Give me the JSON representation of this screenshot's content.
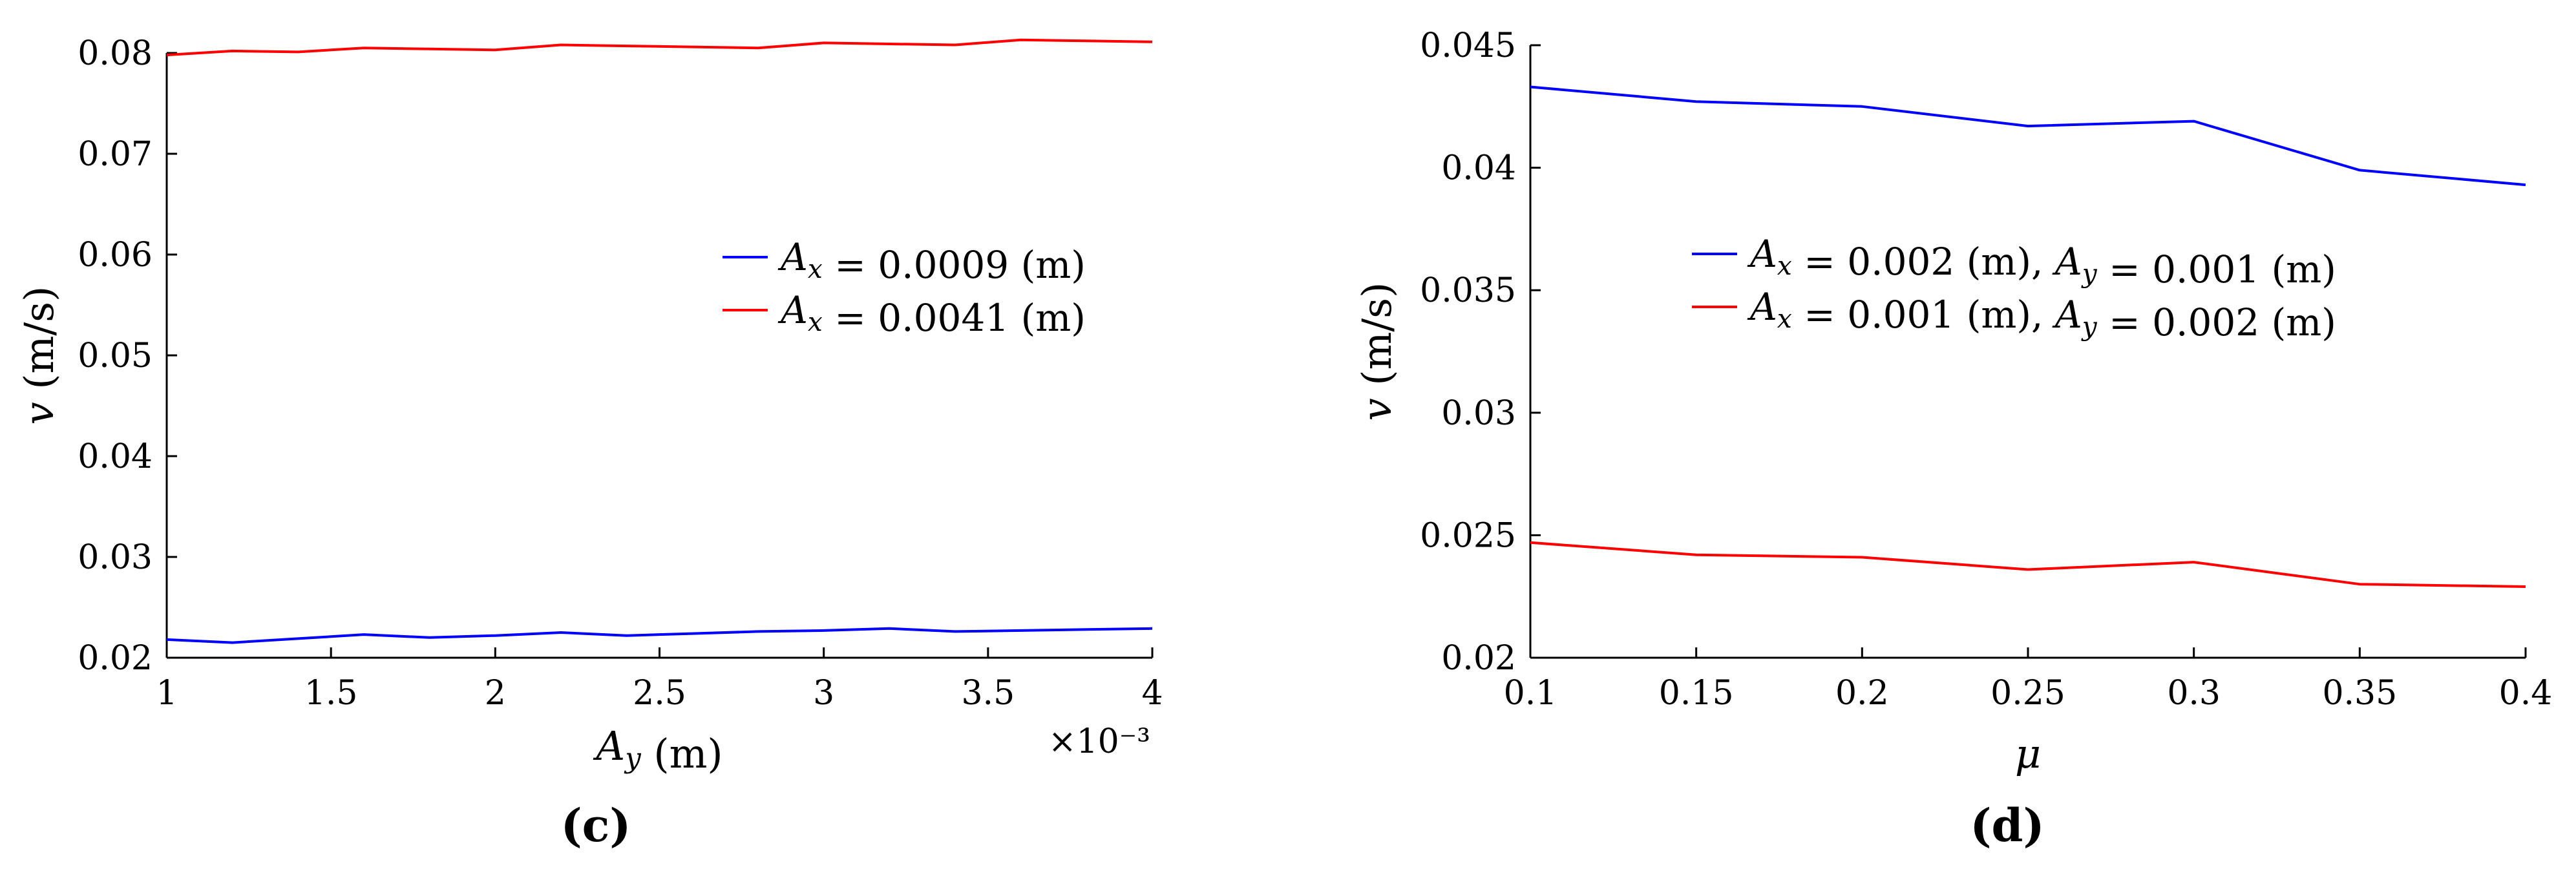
{
  "chart_data": [
    {
      "type": "line",
      "panel_label": "(c)",
      "xlabel": "A_y (m)",
      "ylabel": "v (m/s)",
      "x_multiplier": "×10⁻³",
      "xlim": [
        1,
        4
      ],
      "ylim": [
        0.02,
        0.08
      ],
      "xticks": [
        1,
        1.5,
        2,
        2.5,
        3,
        3.5,
        4
      ],
      "xtick_labels": [
        "1",
        "1.5",
        "2",
        "2.5",
        "3",
        "3.5",
        "4"
      ],
      "yticks": [
        0.02,
        0.03,
        0.04,
        0.05,
        0.06,
        0.07,
        0.08
      ],
      "ytick_labels": [
        "0.02",
        "0.03",
        "0.04",
        "0.05",
        "0.06",
        "0.07",
        "0.08"
      ],
      "x": [
        1.0,
        1.2,
        1.4,
        1.6,
        1.8,
        2.0,
        2.2,
        2.4,
        2.6,
        2.8,
        3.0,
        3.2,
        3.4,
        3.6,
        3.8,
        4.0
      ],
      "series": [
        {
          "name": "A_x = 0.0009 (m)",
          "color": "#0000ff",
          "values": [
            0.0218,
            0.0215,
            0.0219,
            0.0223,
            0.022,
            0.0222,
            0.0225,
            0.0222,
            0.0224,
            0.0226,
            0.0227,
            0.0229,
            0.0226,
            0.0227,
            0.0228,
            0.0229
          ]
        },
        {
          "name": "A_x = 0.0041 (m)",
          "color": "#ff0000",
          "values": [
            0.0798,
            0.0802,
            0.0801,
            0.0805,
            0.0804,
            0.0803,
            0.0808,
            0.0807,
            0.0806,
            0.0805,
            0.081,
            0.0809,
            0.0808,
            0.0813,
            0.0812,
            0.0811
          ]
        }
      ],
      "legend_position": "right"
    },
    {
      "type": "line",
      "panel_label": "(d)",
      "xlabel": "μ",
      "ylabel": "v (m/s)",
      "xlim": [
        0.1,
        0.4
      ],
      "ylim": [
        0.02,
        0.045
      ],
      "xticks": [
        0.1,
        0.15,
        0.2,
        0.25,
        0.3,
        0.35,
        0.4
      ],
      "xtick_labels": [
        "0.1",
        "0.15",
        "0.2",
        "0.25",
        "0.3",
        "0.35",
        "0.4"
      ],
      "yticks": [
        0.02,
        0.025,
        0.03,
        0.035,
        0.04,
        0.045
      ],
      "ytick_labels": [
        "0.02",
        "0.025",
        "0.03",
        "0.035",
        "0.04",
        "0.045"
      ],
      "x": [
        0.1,
        0.15,
        0.2,
        0.25,
        0.3,
        0.35,
        0.4
      ],
      "series": [
        {
          "name": "A_x = 0.002 (m), A_y = 0.001 (m)",
          "color": "#0000ff",
          "values": [
            0.0433,
            0.0427,
            0.0425,
            0.0417,
            0.0419,
            0.0399,
            0.0393
          ]
        },
        {
          "name": "A_x = 0.001 (m), A_y = 0.002 (m)",
          "color": "#ff0000",
          "values": [
            0.0247,
            0.0242,
            0.0241,
            0.0236,
            0.0239,
            0.023,
            0.0229
          ]
        }
      ],
      "legend_position": "center"
    }
  ]
}
